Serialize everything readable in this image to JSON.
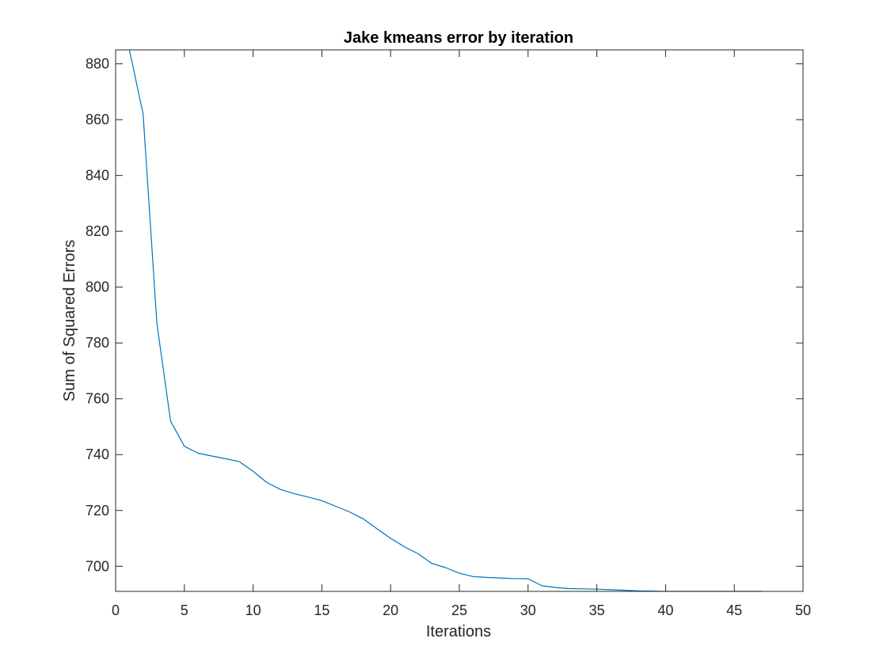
{
  "chart_data": {
    "type": "line",
    "title": "Jake kmeans error by iteration",
    "xlabel": "Iterations",
    "ylabel": "Sum of Squared Errors",
    "xlim": [
      0,
      50
    ],
    "ylim": [
      691,
      885
    ],
    "xticks": [
      0,
      5,
      10,
      15,
      20,
      25,
      30,
      35,
      40,
      45,
      50
    ],
    "yticks": [
      700,
      720,
      740,
      760,
      780,
      800,
      820,
      840,
      860,
      880
    ],
    "grid": false,
    "line_color": "#0072BD",
    "axis_color": "#262626",
    "series": [
      {
        "x": [
          1,
          2,
          3,
          4,
          5,
          6,
          7,
          8,
          9,
          10,
          11,
          12,
          13,
          14,
          15,
          16,
          17,
          18,
          19,
          20,
          21,
          22,
          23,
          24,
          25,
          26,
          27,
          28,
          29,
          30,
          31,
          32,
          33,
          34,
          35,
          36,
          37,
          38,
          39,
          40,
          41,
          42,
          43,
          44,
          45,
          46,
          47
        ],
        "y": [
          885,
          862,
          787,
          752,
          743,
          740.5,
          739.5,
          738.5,
          737.5,
          734,
          730,
          727.5,
          726,
          724.8,
          723.5,
          721.5,
          719.5,
          717,
          713.5,
          710,
          707,
          704.5,
          701,
          699.5,
          697.5,
          696.3,
          696,
          695.8,
          695.6,
          695.5,
          693,
          692.4,
          692,
          691.9,
          691.8,
          691.6,
          691.4,
          691.2,
          691.1,
          691,
          691,
          691,
          691,
          691,
          691,
          691,
          691
        ]
      }
    ]
  }
}
